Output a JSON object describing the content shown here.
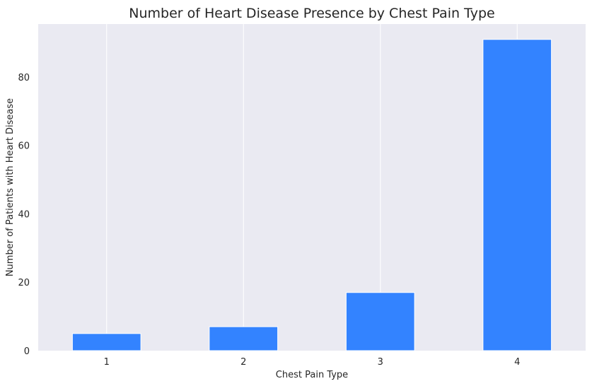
{
  "chart_data": {
    "type": "bar",
    "title": "Number of Heart Disease Presence by Chest Pain Type",
    "xlabel": "Chest Pain Type",
    "ylabel": "Number of Patients with Heart Disease",
    "categories": [
      "1",
      "2",
      "3",
      "4"
    ],
    "values": [
      5,
      7,
      17,
      91
    ],
    "ylim": [
      0,
      95.5
    ],
    "yticks": [
      0,
      20,
      40,
      60,
      80
    ],
    "grid": "vertical",
    "bar_color": "#3383ff",
    "background_color": "#eaeaf2",
    "grid_color": "#ffffff"
  }
}
